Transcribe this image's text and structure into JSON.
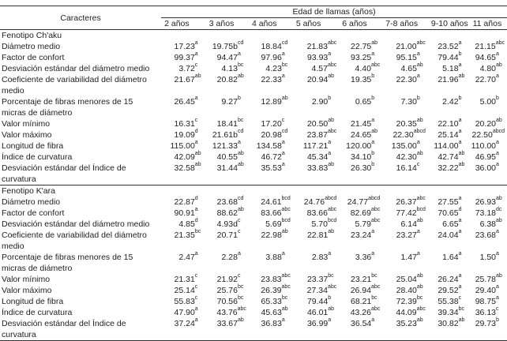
{
  "header": {
    "caracteres": "Caracteres",
    "age_title": "Edad de llamas (años)",
    "ages": [
      "2 años",
      "3 años",
      "4 años",
      "5 años",
      "6 años",
      "7-8 años",
      "9-10 años",
      "11 años"
    ]
  },
  "groups": [
    {
      "title": "Fenotipo Ch'aku",
      "rows": [
        {
          "label": "Diámetro medio",
          "values": [
            [
              "17.23",
              "a"
            ],
            [
              "19.75b",
              "cd"
            ],
            [
              "18.84",
              "cd"
            ],
            [
              "21.83",
              "abc"
            ],
            [
              "22.75",
              "ab"
            ],
            [
              "21.00",
              "abc"
            ],
            [
              "23.52",
              "a"
            ],
            [
              "21.15",
              "abc"
            ]
          ]
        },
        {
          "label": "Factor de confort",
          "values": [
            [
              "99.37",
              "a"
            ],
            [
              "94.47",
              "a"
            ],
            [
              "97.96",
              "a"
            ],
            [
              "93.93",
              "a"
            ],
            [
              "93.25",
              "a"
            ],
            [
              "95.15",
              "a"
            ],
            [
              "79.44",
              "b"
            ],
            [
              "94.65",
              "a"
            ]
          ]
        },
        {
          "label": "Desviación estándar del diámetro medio",
          "values": [
            [
              "3.72",
              "c"
            ],
            [
              "4.13",
              "bc"
            ],
            [
              "4.23",
              "bc"
            ],
            [
              "4.57",
              "abc"
            ],
            [
              "4.40",
              "abc"
            ],
            [
              "4.65",
              "ab"
            ],
            [
              "5.18",
              "a"
            ],
            [
              "4.80",
              "ab"
            ]
          ]
        },
        {
          "label": "Coeficiente de variabilidad del diámetro medio",
          "values": [
            [
              "21.67",
              "ab"
            ],
            [
              "20.82",
              "ab"
            ],
            [
              "22.33",
              "a"
            ],
            [
              "20.94",
              "ab"
            ],
            [
              "19.35",
              "b"
            ],
            [
              "22.30",
              "a"
            ],
            [
              "21.96",
              "ab"
            ],
            [
              "22.70",
              "a"
            ]
          ]
        },
        {
          "label": "Porcentaje de fibras menores de 15 micras de diámetro",
          "values": [
            [
              "26.45",
              "a"
            ],
            [
              "9.27",
              "b"
            ],
            [
              "12.89",
              "ab"
            ],
            [
              "2.90",
              "b"
            ],
            [
              "0.65",
              "b"
            ],
            [
              "7.30",
              "b"
            ],
            [
              "2.42",
              "b"
            ],
            [
              "5.00",
              "b"
            ]
          ]
        },
        {
          "label": "Valor mínimo",
          "values": [
            [
              "16.31",
              "c"
            ],
            [
              "18.41",
              "bc"
            ],
            [
              "17.20",
              "c"
            ],
            [
              "20.50",
              "ab"
            ],
            [
              "21.45",
              "a"
            ],
            [
              "20.35",
              "ab"
            ],
            [
              "22.10",
              "a"
            ],
            [
              "20.20",
              "ab"
            ]
          ]
        },
        {
          "label": "Valor máximo",
          "values": [
            [
              "19.09",
              "d"
            ],
            [
              "21.61b",
              "cd"
            ],
            [
              "20.98",
              "cd"
            ],
            [
              "23.87",
              "abc"
            ],
            [
              "24.65",
              "ab"
            ],
            [
              "22.30",
              "abcd"
            ],
            [
              "25.14",
              "a"
            ],
            [
              "22.50",
              "abcd"
            ]
          ]
        },
        {
          "label": "Longitud de fibra",
          "values": [
            [
              "115.00",
              "a"
            ],
            [
              "121.33",
              "a"
            ],
            [
              "134.58",
              "a"
            ],
            [
              "117.21",
              "a"
            ],
            [
              "120.00",
              "a"
            ],
            [
              "135.00",
              "a"
            ],
            [
              "114.00",
              "a"
            ],
            [
              "110.00",
              "a"
            ]
          ]
        },
        {
          "label": "Índice de curvatura",
          "values": [
            [
              "42.09",
              "ab"
            ],
            [
              "40.55",
              "ab"
            ],
            [
              "46.72",
              "a"
            ],
            [
              "45.34",
              "a"
            ],
            [
              "34.10",
              "b"
            ],
            [
              "42.30",
              "ab"
            ],
            [
              "42.74",
              "ab"
            ],
            [
              "46.95",
              "a"
            ]
          ]
        },
        {
          "label": "Desviación estándar del Índice de curvatura",
          "values": [
            [
              "32.58",
              "ab"
            ],
            [
              "31.44",
              "ab"
            ],
            [
              "35.53",
              "a"
            ],
            [
              "33.83",
              "ab"
            ],
            [
              "26.30",
              "b"
            ],
            [
              "16.14",
              "c"
            ],
            [
              "32.22",
              "ab"
            ],
            [
              "36.00",
              "a"
            ]
          ]
        }
      ]
    },
    {
      "title": "Fenotipo K'ara",
      "rows": [
        {
          "label": "Diámetro medio",
          "values": [
            [
              "22.87",
              "d"
            ],
            [
              "23.68",
              "cd"
            ],
            [
              "24.61",
              "bcd"
            ],
            [
              "24.76",
              "abcd"
            ],
            [
              "24.77",
              "abcd"
            ],
            [
              "26.37",
              "abc"
            ],
            [
              "27.55",
              "a"
            ],
            [
              "26.93",
              "ab"
            ]
          ]
        },
        {
          "label": "Factor de confort",
          "values": [
            [
              "90.91",
              "a"
            ],
            [
              "88.62",
              "ab"
            ],
            [
              "83.66",
              "abc"
            ],
            [
              "83.66",
              "abc"
            ],
            [
              "82.69",
              "abc"
            ],
            [
              "77.42",
              "bcd"
            ],
            [
              "70.65",
              "d"
            ],
            [
              "73.18",
              "dc"
            ]
          ]
        },
        {
          "label": "Desviación estándar del diámetro medio",
          "values": [
            [
              "4.85",
              "d"
            ],
            [
              "4.93d",
              "c"
            ],
            [
              "5.69",
              "bcd"
            ],
            [
              "5.70",
              "bcd"
            ],
            [
              "5.79",
              "abc"
            ],
            [
              "6.14",
              "ab"
            ],
            [
              "6.65",
              "a"
            ],
            [
              "6.38",
              "ab"
            ]
          ]
        },
        {
          "label": "Coeficiente de variabilidad del diámetro medio",
          "values": [
            [
              "21.35",
              "bc"
            ],
            [
              "20.71",
              "c"
            ],
            [
              "22.98",
              "ab"
            ],
            [
              "22.81",
              "ab"
            ],
            [
              "23.24",
              "a"
            ],
            [
              "23.27",
              "a"
            ],
            [
              "24.04",
              "a"
            ],
            [
              "23.68",
              "a"
            ]
          ]
        },
        {
          "label": "Porcentaje de fibras menores de 15 micras de diámetro",
          "values": [
            [
              "2.47",
              "a"
            ],
            [
              "2.28",
              "a"
            ],
            [
              "3.88",
              "a"
            ],
            [
              "2.83",
              "a"
            ],
            [
              "3.36",
              "a"
            ],
            [
              "1.47",
              "a"
            ],
            [
              "1.64",
              "a"
            ],
            [
              "1.50",
              "a"
            ]
          ]
        },
        {
          "label": "Valor mínimo",
          "values": [
            [
              "21.31",
              "c"
            ],
            [
              "21.92",
              "c"
            ],
            [
              "23.83",
              "abc"
            ],
            [
              "23.37",
              "bc"
            ],
            [
              "23.21",
              "bc"
            ],
            [
              "25.04",
              "ab"
            ],
            [
              "26.24",
              "a"
            ],
            [
              "25.78",
              "ab"
            ]
          ]
        },
        {
          "label": "Valor máximo",
          "values": [
            [
              "25.14",
              "c"
            ],
            [
              "25.76",
              "bc"
            ],
            [
              "26.39",
              "abc"
            ],
            [
              "27.34",
              "abc"
            ],
            [
              "26.94",
              "abc"
            ],
            [
              "28.40",
              "ab"
            ],
            [
              "29.52",
              "a"
            ],
            [
              "29.40",
              "a"
            ]
          ]
        },
        {
          "label": "Longitud de fibra",
          "values": [
            [
              "55.83",
              "c"
            ],
            [
              "70.56",
              "bc"
            ],
            [
              "65.33",
              "bc"
            ],
            [
              "79.44",
              "b"
            ],
            [
              "68.21",
              "bc"
            ],
            [
              "72.39",
              "bc"
            ],
            [
              "55.38",
              "c"
            ],
            [
              "98.75",
              "a"
            ]
          ]
        },
        {
          "label": "Índice de curvatura",
          "values": [
            [
              "47.90",
              "a"
            ],
            [
              "43.76",
              "abc"
            ],
            [
              "45.63",
              "ab"
            ],
            [
              "46.01",
              "ab"
            ],
            [
              "43.26",
              "abc"
            ],
            [
              "44.09",
              "abc"
            ],
            [
              "39.34",
              "bc"
            ],
            [
              "36.13",
              "c"
            ]
          ]
        },
        {
          "label": "Desviación estándar del Índice de curvatura",
          "values": [
            [
              "37.24",
              "a"
            ],
            [
              "33.67",
              "ab"
            ],
            [
              "36.83",
              "a"
            ],
            [
              "36.99",
              "a"
            ],
            [
              "36.54",
              "a"
            ],
            [
              "35.23",
              "ab"
            ],
            [
              "30.82",
              "ab"
            ],
            [
              "29.73",
              "b"
            ]
          ]
        }
      ]
    }
  ]
}
